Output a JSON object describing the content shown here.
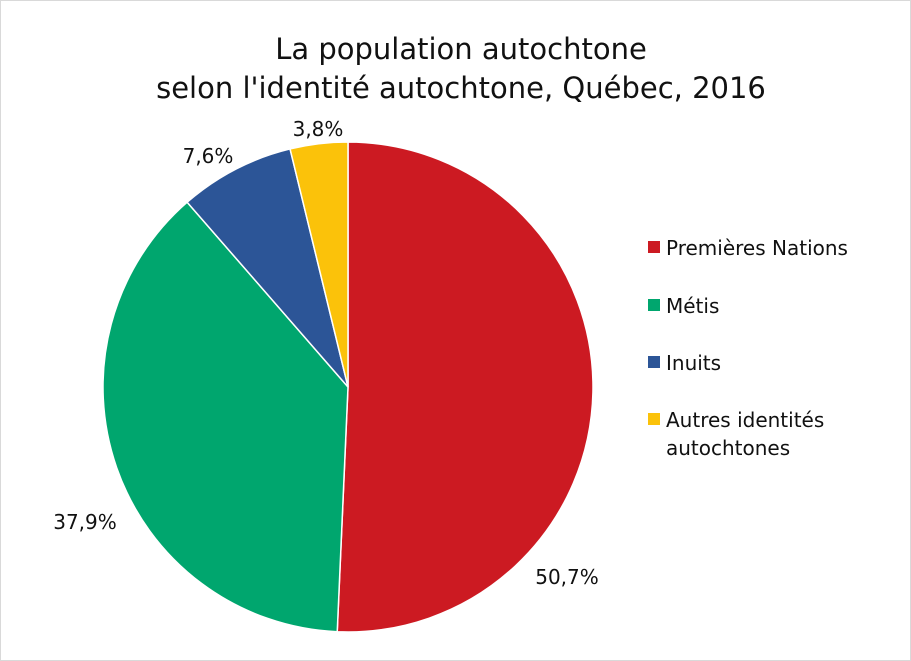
{
  "chart_data": {
    "type": "pie",
    "title": [
      "La population autochtone",
      "selon l'identité autochtone, Québec, 2016"
    ],
    "categories": [
      "Premières Nations",
      "Métis",
      "Inuits",
      "Autres identités autochtones"
    ],
    "values": [
      50.7,
      37.9,
      7.6,
      3.8
    ],
    "value_labels": [
      "50,7%",
      "37,9%",
      "7,6%",
      "3,8%"
    ],
    "colors": [
      "#cc1a22",
      "#00a66e",
      "#2c5597",
      "#fbc20a"
    ],
    "legend_lines": [
      [
        "Premières Nations"
      ],
      [
        "Métis"
      ],
      [
        "Inuits"
      ],
      [
        "Autres identités",
        "autochtones"
      ]
    ],
    "legend_position": "right",
    "start_angle": "12 o'clock",
    "direction": "clockwise"
  }
}
